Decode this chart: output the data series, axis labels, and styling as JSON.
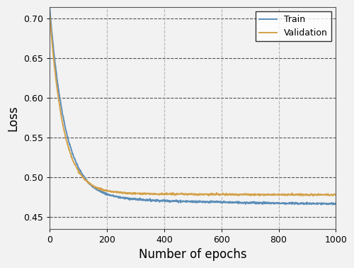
{
  "title": "",
  "xlabel": "Number of epochs",
  "ylabel": "Loss",
  "xlim": [
    0,
    1000
  ],
  "ylim": [
    0.435,
    0.715
  ],
  "yticks": [
    0.45,
    0.5,
    0.55,
    0.6,
    0.65,
    0.7
  ],
  "xticks": [
    0,
    200,
    400,
    600,
    800,
    1000
  ],
  "train_color": "#5B8DB8",
  "val_color": "#D4A24A",
  "train_label": "Train",
  "val_label": "Validation",
  "background_color": "#F2F2F2",
  "plot_bg_color": "#F2F2F2",
  "h_grid_color": "#333333",
  "v_grid_color": "#AAAAAA",
  "legend_fontsize": 9,
  "axis_label_fontsize": 12,
  "tick_fontsize": 9,
  "line_width": 1.4,
  "n_epochs": 1000,
  "decay_fast_train": 55,
  "decay_slow_train": 700,
  "base_train": 0.4635,
  "amp_fast_train": 0.237,
  "amp_slow_train": 0.012,
  "decay_fast_val": 48,
  "decay_slow_val": 500,
  "base_val": 0.4775,
  "amp_fast_val": 0.224,
  "amp_slow_val": 0.003
}
